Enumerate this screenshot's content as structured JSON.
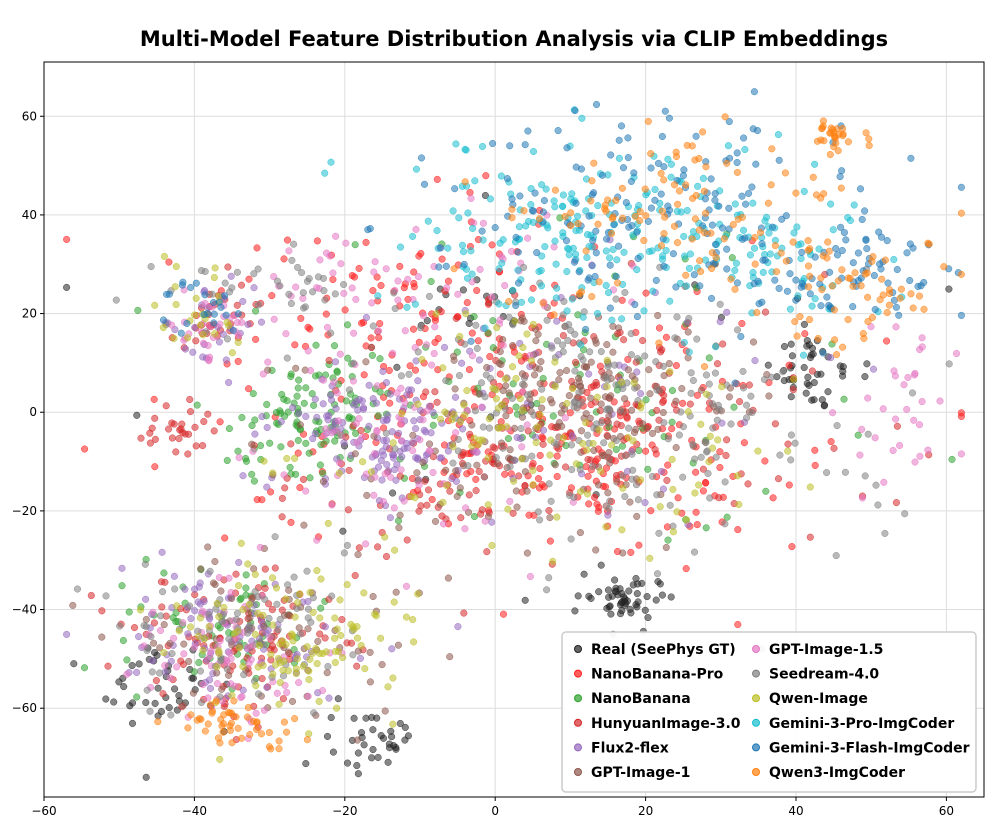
{
  "chart_data": {
    "type": "scatter",
    "title": "Multi-Model Feature Distribution Analysis via CLIP Embeddings",
    "xlabel": "",
    "ylabel": "",
    "xlim": [
      -60,
      65
    ],
    "ylim": [
      -78,
      71
    ],
    "xticks": [
      -60,
      -40,
      -20,
      0,
      20,
      40,
      60
    ],
    "yticks": [
      -60,
      -40,
      -20,
      0,
      20,
      40,
      60
    ],
    "grid": true,
    "legend_position": "bottom-right",
    "legend_columns": 2,
    "point_opacity": 0.55,
    "series": [
      {
        "name": "Real (SeePhys GT)",
        "color": "#222222",
        "count": 210,
        "clusters": [
          {
            "cx": -45,
            "cy": -55,
            "sx": 4,
            "sy": 5,
            "w": 3
          },
          {
            "cx": -16,
            "cy": -67,
            "sx": 3,
            "sy": 3,
            "w": 2
          },
          {
            "cx": 18,
            "cy": -38,
            "sx": 3,
            "sy": 2.5,
            "w": 3
          },
          {
            "cx": 42,
            "cy": 8,
            "sx": 3,
            "sy": 4,
            "w": 3
          },
          {
            "cx": -2,
            "cy": 22,
            "sx": 3,
            "sy": 3,
            "w": 1
          },
          {
            "cx": 0,
            "cy": 0,
            "sx": 25,
            "sy": 25,
            "w": 1
          }
        ]
      },
      {
        "name": "NanoBanana-Pro",
        "color": "#ff1a1a",
        "count": 360,
        "clusters": [
          {
            "cx": 5,
            "cy": 2,
            "sx": 20,
            "sy": 15,
            "w": 5
          },
          {
            "cx": -15,
            "cy": 20,
            "sx": 10,
            "sy": 10,
            "w": 2
          },
          {
            "cx": 15,
            "cy": -12,
            "sx": 10,
            "sy": 8,
            "w": 2
          }
        ]
      },
      {
        "name": "NanoBanana",
        "color": "#2ca02c",
        "count": 250,
        "clusters": [
          {
            "cx": -24,
            "cy": 0,
            "sx": 5,
            "sy": 6,
            "w": 4
          },
          {
            "cx": 5,
            "cy": 5,
            "sx": 18,
            "sy": 14,
            "w": 3
          },
          {
            "cx": -35,
            "cy": -45,
            "sx": 8,
            "sy": 7,
            "w": 2
          }
        ]
      },
      {
        "name": "HunyuanImage-3.0",
        "color": "#d62728",
        "count": 340,
        "clusters": [
          {
            "cx": 15,
            "cy": 0,
            "sx": 16,
            "sy": 12,
            "w": 4
          },
          {
            "cx": -35,
            "cy": -45,
            "sx": 8,
            "sy": 8,
            "w": 3
          },
          {
            "cx": -10,
            "cy": -15,
            "sx": 10,
            "sy": 8,
            "w": 2
          },
          {
            "cx": -37,
            "cy": 18,
            "sx": 3,
            "sy": 3,
            "w": 1
          },
          {
            "cx": -42,
            "cy": -4,
            "sx": 2.5,
            "sy": 2.5,
            "w": 1
          }
        ]
      },
      {
        "name": "Flux2-flex",
        "color": "#9467bd",
        "count": 300,
        "clusters": [
          {
            "cx": -15,
            "cy": -5,
            "sx": 7,
            "sy": 6,
            "w": 4
          },
          {
            "cx": -35,
            "cy": -45,
            "sx": 8,
            "sy": 7,
            "w": 3
          },
          {
            "cx": -37,
            "cy": 18,
            "sx": 3,
            "sy": 4,
            "w": 1
          },
          {
            "cx": 10,
            "cy": 5,
            "sx": 15,
            "sy": 12,
            "w": 2
          }
        ]
      },
      {
        "name": "GPT-Image-1",
        "color": "#8c564b",
        "count": 280,
        "clusters": [
          {
            "cx": 10,
            "cy": 5,
            "sx": 10,
            "sy": 8,
            "w": 4
          },
          {
            "cx": -30,
            "cy": -45,
            "sx": 10,
            "sy": 8,
            "w": 2
          },
          {
            "cx": 0,
            "cy": -10,
            "sx": 15,
            "sy": 10,
            "w": 2
          }
        ]
      },
      {
        "name": "GPT-Image-1.5",
        "color": "#e377c2",
        "count": 280,
        "clusters": [
          {
            "cx": -15,
            "cy": -5,
            "sx": 10,
            "sy": 10,
            "w": 3
          },
          {
            "cx": -35,
            "cy": -50,
            "sx": 6,
            "sy": 8,
            "w": 2
          },
          {
            "cx": -38,
            "cy": 17,
            "sx": 3,
            "sy": 3,
            "w": 1
          },
          {
            "cx": -10,
            "cy": 25,
            "sx": 12,
            "sy": 8,
            "w": 2
          },
          {
            "cx": 55,
            "cy": 0,
            "sx": 4,
            "sy": 10,
            "w": 1
          }
        ]
      },
      {
        "name": "Seedream-4.0",
        "color": "#7f7f7f",
        "count": 330,
        "clusters": [
          {
            "cx": 22,
            "cy": -5,
            "sx": 15,
            "sy": 12,
            "w": 4
          },
          {
            "cx": -35,
            "cy": -45,
            "sx": 8,
            "sy": 8,
            "w": 2
          },
          {
            "cx": 5,
            "cy": 10,
            "sx": 12,
            "sy": 10,
            "w": 2
          },
          {
            "cx": -30,
            "cy": 25,
            "sx": 8,
            "sy": 5,
            "w": 1
          }
        ]
      },
      {
        "name": "Qwen-Image",
        "color": "#bcbd22",
        "count": 260,
        "clusters": [
          {
            "cx": -28,
            "cy": -47,
            "sx": 8,
            "sy": 7,
            "w": 3
          },
          {
            "cx": 5,
            "cy": -5,
            "sx": 15,
            "sy": 12,
            "w": 4
          },
          {
            "cx": -40,
            "cy": 20,
            "sx": 3,
            "sy": 5,
            "w": 1
          }
        ]
      },
      {
        "name": "Gemini-3-Pro-ImgCoder",
        "color": "#17becf",
        "count": 260,
        "clusters": [
          {
            "cx": 15,
            "cy": 40,
            "sx": 15,
            "sy": 8,
            "w": 4
          },
          {
            "cx": 35,
            "cy": 30,
            "sx": 10,
            "sy": 8,
            "w": 2
          },
          {
            "cx": 5,
            "cy": 30,
            "sx": 10,
            "sy": 6,
            "w": 1
          }
        ]
      },
      {
        "name": "Gemini-3-Flash-ImgCoder",
        "color": "#1f77b4",
        "count": 260,
        "clusters": [
          {
            "cx": 18,
            "cy": 42,
            "sx": 15,
            "sy": 10,
            "w": 4
          },
          {
            "cx": 45,
            "cy": 28,
            "sx": 7,
            "sy": 6,
            "w": 2
          },
          {
            "cx": -40,
            "cy": 21,
            "sx": 3,
            "sy": 3,
            "w": 1
          }
        ]
      },
      {
        "name": "Qwen3-ImgCoder",
        "color": "#ff7f0e",
        "count": 240,
        "clusters": [
          {
            "cx": 25,
            "cy": 40,
            "sx": 12,
            "sy": 10,
            "w": 4
          },
          {
            "cx": 48,
            "cy": 25,
            "sx": 6,
            "sy": 6,
            "w": 2
          },
          {
            "cx": 46,
            "cy": 56,
            "sx": 2,
            "sy": 1.5,
            "w": 1
          },
          {
            "cx": -38,
            "cy": -62,
            "sx": 3,
            "sy": 2,
            "w": 1
          },
          {
            "cx": -30,
            "cy": -65,
            "sx": 3,
            "sy": 2,
            "w": 1
          }
        ]
      }
    ]
  }
}
